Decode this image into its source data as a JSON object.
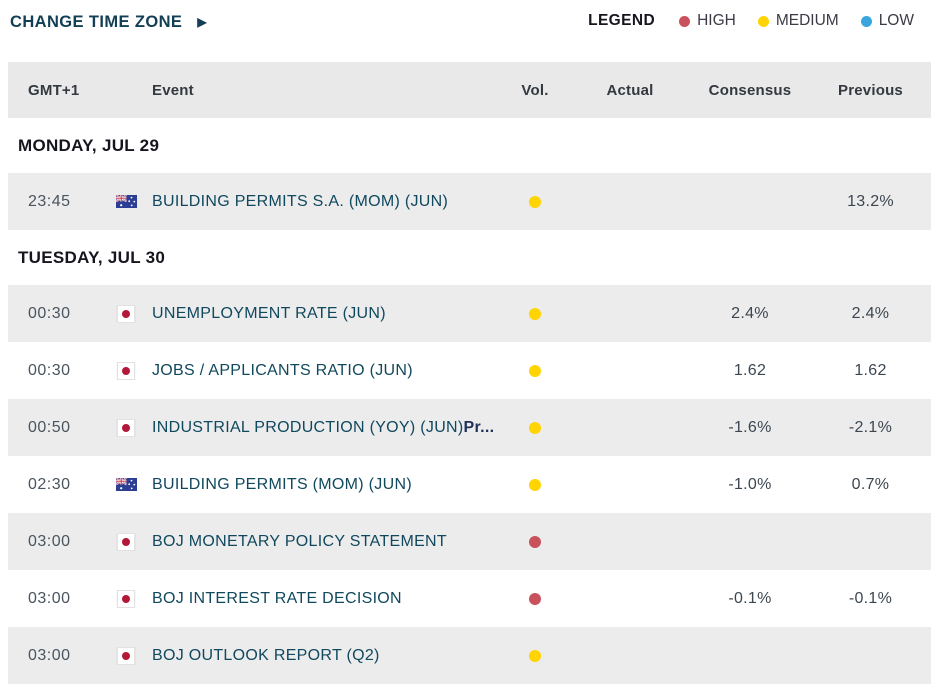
{
  "toolbar": {
    "change_time_zone": "CHANGE TIME ZONE",
    "change_time_zone_arrow": "▶",
    "legend_label": "LEGEND",
    "legend_items": [
      {
        "label": "HIGH",
        "level": "high"
      },
      {
        "label": "MEDIUM",
        "level": "medium"
      },
      {
        "label": "LOW",
        "level": "low"
      }
    ]
  },
  "colors": {
    "high": "#c9515c",
    "medium": "#ffd401",
    "low": "#3aa6df",
    "row_shaded": "#ececec",
    "header_bg": "#e9e9e9",
    "event_link": "#10485e",
    "accent_teal": "#123f55"
  },
  "table": {
    "columns": [
      "GMT+1",
      "Event",
      "Vol.",
      "Actual",
      "Consensus",
      "Previous"
    ],
    "sections": [
      {
        "date_label": "MONDAY, JUL 29",
        "rows": [
          {
            "time": "23:45",
            "country": "australia-flag",
            "event": "BUILDING PERMITS S.A. (MOM) (JUN)",
            "event_suffix": "",
            "volatility": "medium",
            "actual": "",
            "consensus": "",
            "previous": "13.2%",
            "shaded": true
          }
        ]
      },
      {
        "date_label": "TUESDAY, JUL 30",
        "rows": [
          {
            "time": "00:30",
            "country": "japan-flag",
            "event": "UNEMPLOYMENT RATE (JUN)",
            "event_suffix": "",
            "volatility": "medium",
            "actual": "",
            "consensus": "2.4%",
            "previous": "2.4%",
            "shaded": true
          },
          {
            "time": "00:30",
            "country": "japan-flag",
            "event": "JOBS / APPLICANTS RATIO (JUN)",
            "event_suffix": "",
            "volatility": "medium",
            "actual": "",
            "consensus": "1.62",
            "previous": "1.62",
            "shaded": false
          },
          {
            "time": "00:50",
            "country": "japan-flag",
            "event": "INDUSTRIAL PRODUCTION (YOY) (JUN)",
            "event_suffix": "Pr...",
            "volatility": "medium",
            "actual": "",
            "consensus": "-1.6%",
            "previous": "-2.1%",
            "shaded": true
          },
          {
            "time": "02:30",
            "country": "australia-flag",
            "event": "BUILDING PERMITS (MOM) (JUN)",
            "event_suffix": "",
            "volatility": "medium",
            "actual": "",
            "consensus": "-1.0%",
            "previous": "0.7%",
            "shaded": false
          },
          {
            "time": "03:00",
            "country": "japan-flag",
            "event": "BOJ MONETARY POLICY STATEMENT",
            "event_suffix": "",
            "volatility": "high",
            "actual": "",
            "consensus": "",
            "previous": "",
            "shaded": true
          },
          {
            "time": "03:00",
            "country": "japan-flag",
            "event": "BOJ INTEREST RATE DECISION",
            "event_suffix": "",
            "volatility": "high",
            "actual": "",
            "consensus": "-0.1%",
            "previous": "-0.1%",
            "shaded": false
          },
          {
            "time": "03:00",
            "country": "japan-flag",
            "event": "BOJ OUTLOOK REPORT (Q2)",
            "event_suffix": "",
            "volatility": "medium",
            "actual": "",
            "consensus": "",
            "previous": "",
            "shaded": true
          }
        ]
      }
    ]
  }
}
